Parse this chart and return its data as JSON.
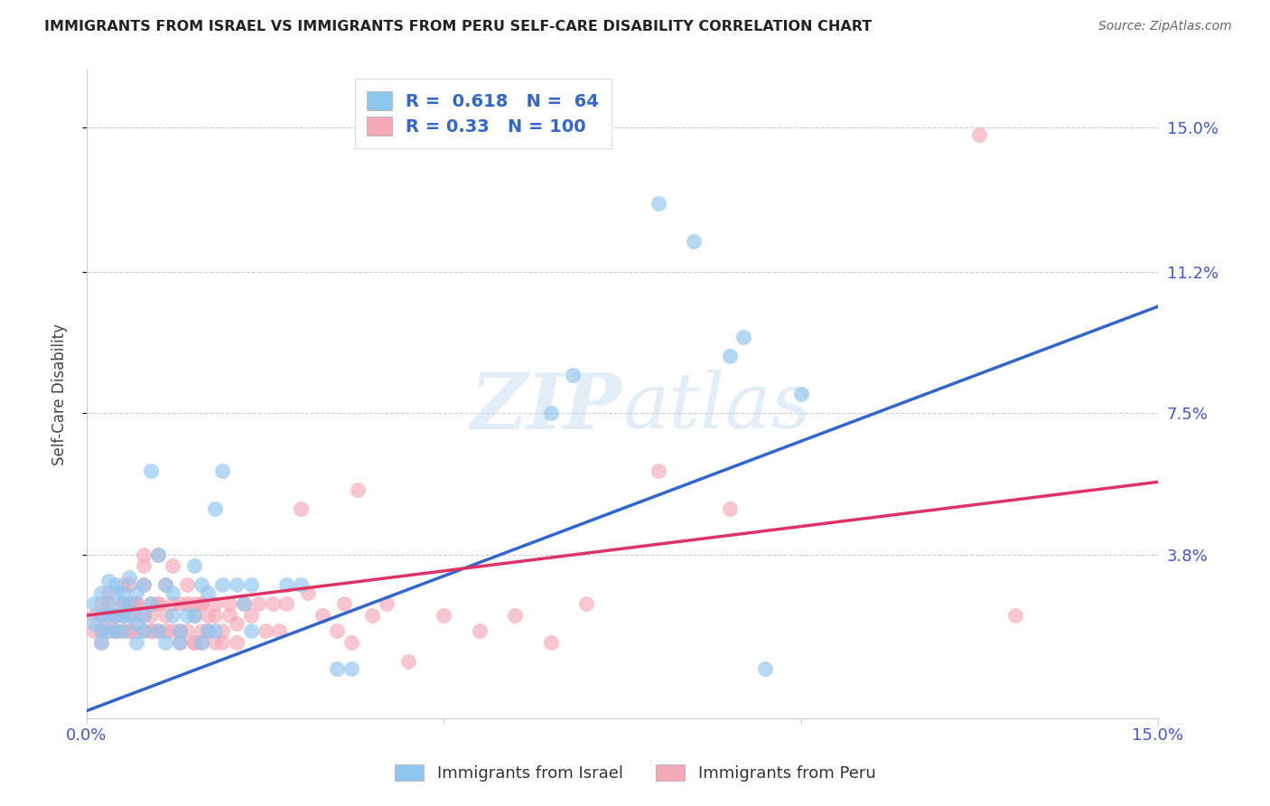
{
  "title": "IMMIGRANTS FROM ISRAEL VS IMMIGRANTS FROM PERU SELF-CARE DISABILITY CORRELATION CHART",
  "source": "Source: ZipAtlas.com",
  "ylabel": "Self-Care Disability",
  "ytick_labels": [
    "15.0%",
    "11.2%",
    "7.5%",
    "3.8%"
  ],
  "ytick_values": [
    0.15,
    0.112,
    0.075,
    0.038
  ],
  "xlim": [
    0.0,
    0.15
  ],
  "ylim": [
    -0.005,
    0.165
  ],
  "israel_R": 0.618,
  "israel_N": 64,
  "peru_R": 0.33,
  "peru_N": 100,
  "israel_color": "#8ec6f0",
  "peru_color": "#f5a8b8",
  "israel_line_color": "#3366cc",
  "peru_line_color": "#dd3366",
  "israel_line_x0": 0.0,
  "israel_line_y0": -0.003,
  "israel_line_x1": 0.15,
  "israel_line_y1": 0.103,
  "peru_line_x0": 0.0,
  "peru_line_y0": 0.022,
  "peru_line_x1": 0.15,
  "peru_line_y1": 0.057,
  "legend_entries": [
    "Immigrants from Israel",
    "Immigrants from Peru"
  ],
  "israel_scatter": [
    [
      0.001,
      0.02
    ],
    [
      0.001,
      0.025
    ],
    [
      0.002,
      0.022
    ],
    [
      0.002,
      0.018
    ],
    [
      0.002,
      0.028
    ],
    [
      0.002,
      0.015
    ],
    [
      0.003,
      0.031
    ],
    [
      0.003,
      0.022
    ],
    [
      0.003,
      0.018
    ],
    [
      0.003,
      0.025
    ],
    [
      0.004,
      0.028
    ],
    [
      0.004,
      0.03
    ],
    [
      0.004,
      0.022
    ],
    [
      0.004,
      0.018
    ],
    [
      0.005,
      0.025
    ],
    [
      0.005,
      0.022
    ],
    [
      0.005,
      0.028
    ],
    [
      0.005,
      0.018
    ],
    [
      0.006,
      0.032
    ],
    [
      0.006,
      0.025
    ],
    [
      0.006,
      0.022
    ],
    [
      0.007,
      0.02
    ],
    [
      0.007,
      0.028
    ],
    [
      0.007,
      0.015
    ],
    [
      0.008,
      0.022
    ],
    [
      0.008,
      0.03
    ],
    [
      0.008,
      0.018
    ],
    [
      0.009,
      0.025
    ],
    [
      0.009,
      0.06
    ],
    [
      0.01,
      0.038
    ],
    [
      0.01,
      0.018
    ],
    [
      0.011,
      0.015
    ],
    [
      0.011,
      0.03
    ],
    [
      0.012,
      0.028
    ],
    [
      0.012,
      0.022
    ],
    [
      0.013,
      0.018
    ],
    [
      0.013,
      0.015
    ],
    [
      0.014,
      0.022
    ],
    [
      0.015,
      0.035
    ],
    [
      0.015,
      0.022
    ],
    [
      0.016,
      0.03
    ],
    [
      0.016,
      0.015
    ],
    [
      0.017,
      0.028
    ],
    [
      0.017,
      0.018
    ],
    [
      0.018,
      0.05
    ],
    [
      0.018,
      0.018
    ],
    [
      0.019,
      0.03
    ],
    [
      0.019,
      0.06
    ],
    [
      0.021,
      0.03
    ],
    [
      0.022,
      0.025
    ],
    [
      0.023,
      0.03
    ],
    [
      0.023,
      0.018
    ],
    [
      0.028,
      0.03
    ],
    [
      0.03,
      0.03
    ],
    [
      0.035,
      0.008
    ],
    [
      0.037,
      0.008
    ],
    [
      0.065,
      0.075
    ],
    [
      0.068,
      0.085
    ],
    [
      0.08,
      0.13
    ],
    [
      0.085,
      0.12
    ],
    [
      0.09,
      0.09
    ],
    [
      0.092,
      0.095
    ],
    [
      0.095,
      0.008
    ],
    [
      0.1,
      0.08
    ]
  ],
  "peru_scatter": [
    [
      0.001,
      0.018
    ],
    [
      0.001,
      0.022
    ],
    [
      0.002,
      0.015
    ],
    [
      0.002,
      0.025
    ],
    [
      0.002,
      0.018
    ],
    [
      0.002,
      0.022
    ],
    [
      0.003,
      0.018
    ],
    [
      0.003,
      0.022
    ],
    [
      0.003,
      0.025
    ],
    [
      0.003,
      0.02
    ],
    [
      0.003,
      0.028
    ],
    [
      0.004,
      0.018
    ],
    [
      0.004,
      0.022
    ],
    [
      0.004,
      0.018
    ],
    [
      0.004,
      0.022
    ],
    [
      0.005,
      0.025
    ],
    [
      0.005,
      0.022
    ],
    [
      0.005,
      0.018
    ],
    [
      0.005,
      0.03
    ],
    [
      0.005,
      0.025
    ],
    [
      0.006,
      0.03
    ],
    [
      0.006,
      0.022
    ],
    [
      0.006,
      0.018
    ],
    [
      0.006,
      0.025
    ],
    [
      0.006,
      0.018
    ],
    [
      0.007,
      0.022
    ],
    [
      0.007,
      0.025
    ],
    [
      0.007,
      0.025
    ],
    [
      0.007,
      0.018
    ],
    [
      0.007,
      0.025
    ],
    [
      0.008,
      0.022
    ],
    [
      0.008,
      0.018
    ],
    [
      0.008,
      0.03
    ],
    [
      0.008,
      0.038
    ],
    [
      0.008,
      0.035
    ],
    [
      0.009,
      0.018
    ],
    [
      0.009,
      0.025
    ],
    [
      0.009,
      0.022
    ],
    [
      0.009,
      0.018
    ],
    [
      0.01,
      0.025
    ],
    [
      0.01,
      0.018
    ],
    [
      0.01,
      0.038
    ],
    [
      0.01,
      0.025
    ],
    [
      0.011,
      0.022
    ],
    [
      0.011,
      0.03
    ],
    [
      0.011,
      0.018
    ],
    [
      0.012,
      0.035
    ],
    [
      0.012,
      0.025
    ],
    [
      0.012,
      0.018
    ],
    [
      0.013,
      0.025
    ],
    [
      0.013,
      0.018
    ],
    [
      0.013,
      0.015
    ],
    [
      0.014,
      0.03
    ],
    [
      0.014,
      0.025
    ],
    [
      0.014,
      0.018
    ],
    [
      0.015,
      0.025
    ],
    [
      0.015,
      0.015
    ],
    [
      0.015,
      0.022
    ],
    [
      0.015,
      0.015
    ],
    [
      0.016,
      0.025
    ],
    [
      0.016,
      0.018
    ],
    [
      0.016,
      0.025
    ],
    [
      0.016,
      0.015
    ],
    [
      0.017,
      0.022
    ],
    [
      0.017,
      0.018
    ],
    [
      0.018,
      0.022
    ],
    [
      0.018,
      0.025
    ],
    [
      0.018,
      0.015
    ],
    [
      0.019,
      0.018
    ],
    [
      0.019,
      0.015
    ],
    [
      0.02,
      0.025
    ],
    [
      0.02,
      0.022
    ],
    [
      0.021,
      0.02
    ],
    [
      0.021,
      0.015
    ],
    [
      0.022,
      0.025
    ],
    [
      0.023,
      0.022
    ],
    [
      0.024,
      0.025
    ],
    [
      0.025,
      0.018
    ],
    [
      0.026,
      0.025
    ],
    [
      0.027,
      0.018
    ],
    [
      0.028,
      0.025
    ],
    [
      0.03,
      0.05
    ],
    [
      0.031,
      0.028
    ],
    [
      0.033,
      0.022
    ],
    [
      0.035,
      0.018
    ],
    [
      0.036,
      0.025
    ],
    [
      0.037,
      0.015
    ],
    [
      0.038,
      0.055
    ],
    [
      0.04,
      0.022
    ],
    [
      0.042,
      0.025
    ],
    [
      0.045,
      0.01
    ],
    [
      0.05,
      0.022
    ],
    [
      0.055,
      0.018
    ],
    [
      0.06,
      0.022
    ],
    [
      0.065,
      0.015
    ],
    [
      0.07,
      0.025
    ],
    [
      0.08,
      0.06
    ],
    [
      0.09,
      0.05
    ],
    [
      0.125,
      0.148
    ],
    [
      0.13,
      0.022
    ]
  ]
}
